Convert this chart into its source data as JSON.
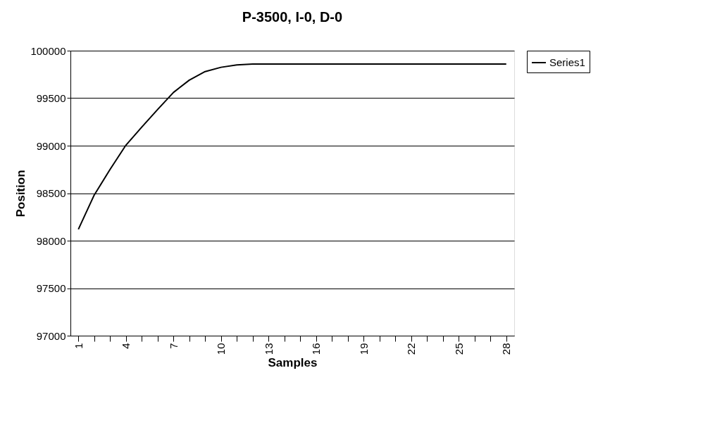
{
  "chart_data": {
    "type": "line",
    "title": "P-3500, I-0, D-0",
    "xlabel": "Samples",
    "ylabel": "Position",
    "categories": [
      "1",
      null,
      null,
      "4",
      null,
      null,
      "7",
      null,
      null,
      "10",
      null,
      null,
      "13",
      null,
      null,
      "16",
      null,
      null,
      "19",
      null,
      null,
      "22",
      null,
      null,
      "25",
      null,
      null,
      "28"
    ],
    "series": [
      {
        "name": "Series1",
        "color": "#000000",
        "values": [
          98120,
          98480,
          98750,
          99005,
          99195,
          99380,
          99560,
          99690,
          99780,
          99825,
          99850,
          99860,
          99860,
          99860,
          99860,
          99860,
          99860,
          99860,
          99860,
          99860,
          99860,
          99860,
          99860,
          99860,
          99860,
          99860,
          99860,
          99860
        ]
      }
    ],
    "ylim": [
      97000,
      100000
    ],
    "yticks": [
      97000,
      97500,
      98000,
      98500,
      99000,
      99500,
      100000
    ],
    "grid": "y",
    "legend": "right"
  }
}
